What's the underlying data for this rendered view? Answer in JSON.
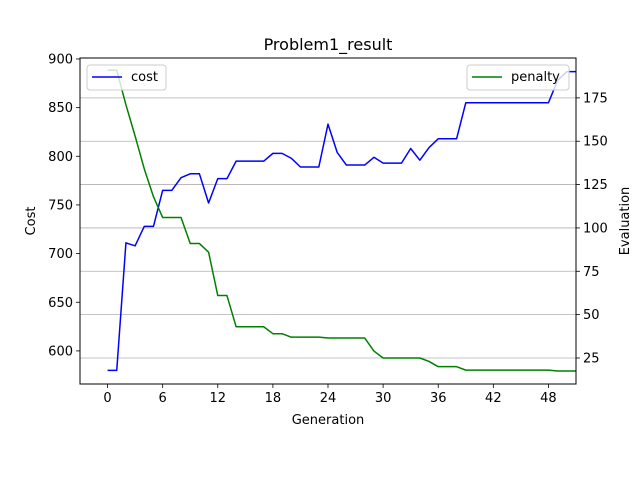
{
  "chart_data": {
    "type": "line",
    "title": "Problem1_result",
    "xlabel": "Generation",
    "ylabel_left": "Cost",
    "ylabel_right": "Evaluation",
    "xlim": [
      -3,
      51
    ],
    "ylim_left": [
      566,
      901
    ],
    "ylim_right": [
      10,
      198
    ],
    "x_ticks": [
      0,
      6,
      12,
      18,
      24,
      30,
      36,
      42,
      48
    ],
    "y_ticks_left": [
      600,
      650,
      700,
      750,
      800,
      850,
      900
    ],
    "y_ticks_right": [
      25,
      50,
      75,
      100,
      125,
      150,
      175
    ],
    "grid": "horizontal lines at right-axis ticks",
    "legend_left": {
      "position": "upper left",
      "entries": [
        "cost"
      ]
    },
    "legend_right": {
      "position": "upper right",
      "entries": [
        "penalty"
      ]
    },
    "x": [
      0,
      1,
      2,
      3,
      4,
      5,
      6,
      7,
      8,
      9,
      10,
      11,
      12,
      13,
      14,
      15,
      16,
      17,
      18,
      19,
      20,
      21,
      22,
      23,
      24,
      25,
      26,
      27,
      28,
      29,
      30,
      31,
      32,
      33,
      34,
      35,
      36,
      37,
      38,
      39,
      40,
      41,
      42,
      43,
      44,
      45,
      46,
      47,
      48,
      49,
      50,
      51
    ],
    "series": [
      {
        "name": "cost",
        "axis": "left",
        "color": "#0000ff",
        "values": [
          580,
          580,
          711,
          708,
          728,
          728,
          765,
          765,
          778,
          782,
          782,
          752,
          777,
          777,
          795,
          795,
          795,
          795,
          803,
          803,
          798,
          789,
          789,
          789,
          833,
          804,
          791,
          791,
          791,
          799,
          793,
          793,
          793,
          808,
          796,
          809,
          818,
          818,
          818,
          855,
          855,
          855,
          855,
          855,
          855,
          855,
          855,
          855,
          855,
          878,
          887,
          887
        ]
      },
      {
        "name": "penalty",
        "axis": "right",
        "color": "#008000",
        "values": [
          191,
          191,
          171,
          153,
          134,
          118,
          106,
          106,
          106,
          91,
          91,
          86,
          61,
          61,
          43,
          43,
          43,
          43,
          39,
          39,
          37,
          37,
          37,
          37,
          36.5,
          36.5,
          36.5,
          36.5,
          36.5,
          29,
          25,
          25,
          25,
          25,
          25,
          23,
          20,
          20,
          20,
          18,
          18,
          18,
          18,
          18,
          18,
          18,
          18,
          18,
          18,
          17.5,
          17.5,
          17.5
        ]
      }
    ]
  }
}
